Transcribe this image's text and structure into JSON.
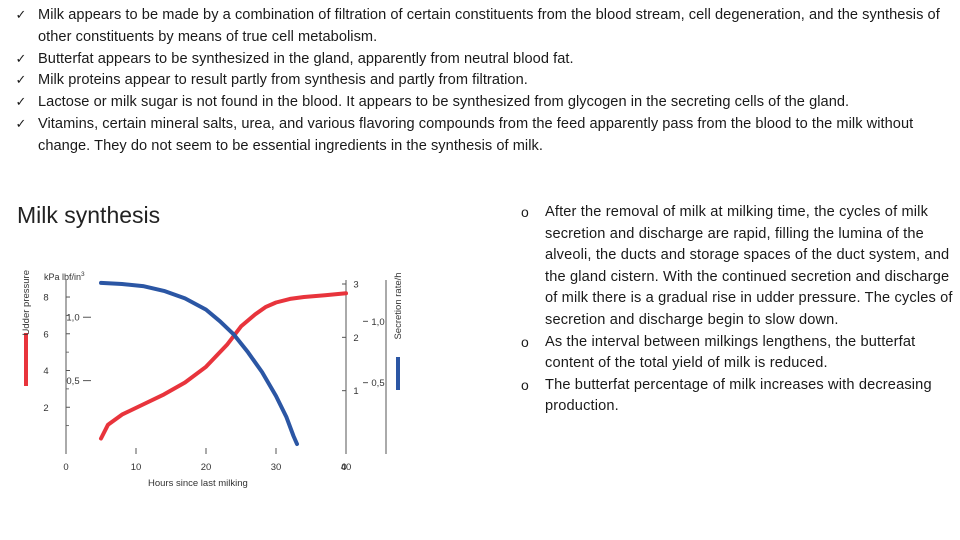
{
  "slide": {
    "title": "Milk synthesis",
    "top_bullets": [
      "Milk appears to be made by a combination of filtration of certain constituents from the blood stream, cell degeneration, and the synthesis of other constituents by means of true cell metabolism.",
      "Butterfat appears to be synthesized in the gland, apparently from neutral blood fat.",
      "Milk proteins appear to result partly from synthesis and partly from filtration.",
      "Lactose or milk sugar is not found in the blood. It appears to be synthesized from glycogen in the secreting cells of the gland.",
      "Vitamins, certain mineral salts, urea, and various flavoring compounds from the feed apparently pass from the blood to the milk without change. They do not seem to be essential ingredients in the synthesis of milk."
    ],
    "bullet_check_glyph": "✓",
    "right_bullets": [
      "After the removal of milk at milking time, the cycles of milk secretion and discharge are rapid, filling the lumina of the alveoli, the ducts and storage spaces of the duct system, and the gland cistern. With the continued secretion and discharge of milk there is a gradual rise in udder pressure. The cycles of secretion and discharge begin to slow down.",
      "As the interval between milkings lengthens, the butterfat content of the total yield of milk is reduced.",
      "The butterfat percentage of milk increases with decreasing production."
    ],
    "bullet_circle_glyph": "o"
  },
  "chart_data": {
    "type": "line",
    "xlabel": "Hours since last milking",
    "ylabel_left": "Udder pressure",
    "ylabel_right": "Secretion rate/h",
    "unit_left": "kPa lbf/in",
    "unit_left_superscript": "3",
    "x_ticks": [
      "0",
      "10",
      "20",
      "30",
      "40"
    ],
    "x_range": [
      0,
      40
    ],
    "left_kpa_ticks": [
      "8",
      "6",
      "4",
      "2"
    ],
    "left_lbf_ticks": [
      "1,0",
      "0,5"
    ],
    "right_secretion_ticks": [
      "3",
      "2",
      "1",
      "0"
    ],
    "right_inner_ticks": [
      "1,0",
      "0,5"
    ],
    "udder_pressure_range_kpa": [
      0,
      9
    ],
    "secretion_rate_range": [
      0,
      3.3
    ],
    "series": [
      {
        "name": "Udder pressure",
        "color": "#e8343c",
        "axis": "left",
        "x": [
          5,
          6,
          8,
          11,
          14,
          17,
          20,
          23,
          25,
          27,
          28.5,
          30,
          32,
          34,
          37,
          40
        ],
        "y": [
          0.3,
          1.05,
          1.6,
          2.15,
          2.7,
          3.35,
          4.2,
          5.4,
          6.4,
          7.05,
          7.45,
          7.7,
          7.9,
          8.0,
          8.1,
          8.2
        ]
      },
      {
        "name": "Secretion rate",
        "color": "#2b56a4",
        "axis": "right",
        "x": [
          5,
          8,
          11,
          14,
          17,
          20,
          22,
          24,
          26,
          28,
          30,
          31.5,
          32.5,
          33
        ],
        "y": [
          3.02,
          3.0,
          2.96,
          2.87,
          2.73,
          2.52,
          2.3,
          2.05,
          1.72,
          1.35,
          0.9,
          0.5,
          0.15,
          0.0
        ]
      }
    ],
    "axis_color": "#555555",
    "tick_color": "#555555"
  }
}
